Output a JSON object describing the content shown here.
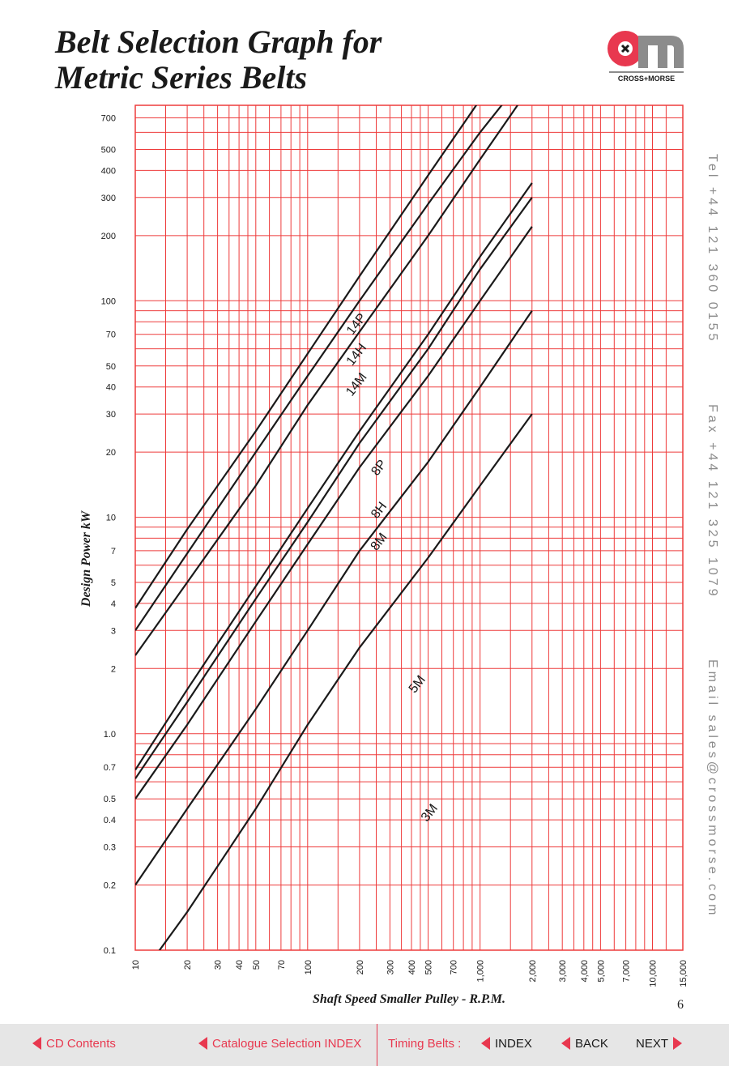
{
  "page": {
    "title_lines": [
      "Belt Selection Graph for",
      "Metric Series Belts"
    ],
    "logo_text": "CROSS+MORSE",
    "contact": {
      "tel": "Tel  +44 121 360 0155",
      "fax": "Fax  +44 121 325 1079",
      "email": "Email  sales@crossmorse.com"
    },
    "page_number": "6"
  },
  "colors": {
    "grid": "#ee3b3b",
    "curve": "#1a1a1a",
    "accent": "#e8384f",
    "footer_bg": "#e6e6e6"
  },
  "footer": {
    "cd_contents": "CD Contents",
    "catalogue_index": "Catalogue Selection INDEX",
    "section_label": "Timing Belts :",
    "index": "INDEX",
    "back": "BACK",
    "next": "NEXT"
  },
  "chart_data": {
    "type": "line",
    "title": "",
    "xlabel": "Shaft Speed Smaller Pulley - R.P.M.",
    "ylabel": "Design Power kW",
    "x_scale": "log",
    "y_scale": "log",
    "xlim": [
      10,
      15000
    ],
    "ylim": [
      0.1,
      800
    ],
    "grid": true,
    "x_ticks": [
      {
        "value": 10,
        "label": "10"
      },
      {
        "value": 20,
        "label": "20"
      },
      {
        "value": 30,
        "label": "30"
      },
      {
        "value": 40,
        "label": "40"
      },
      {
        "value": 50,
        "label": "50"
      },
      {
        "value": 70,
        "label": "70"
      },
      {
        "value": 100,
        "label": "100"
      },
      {
        "value": 200,
        "label": "200"
      },
      {
        "value": 300,
        "label": "300"
      },
      {
        "value": 400,
        "label": "400"
      },
      {
        "value": 500,
        "label": "500"
      },
      {
        "value": 700,
        "label": "700"
      },
      {
        "value": 1000,
        "label": "1,000"
      },
      {
        "value": 2000,
        "label": "2,000"
      },
      {
        "value": 3000,
        "label": "3,000"
      },
      {
        "value": 4000,
        "label": "4,000"
      },
      {
        "value": 5000,
        "label": "5,000"
      },
      {
        "value": 7000,
        "label": "7,000"
      },
      {
        "value": 10000,
        "label": "10,000"
      },
      {
        "value": 15000,
        "label": "15,000"
      }
    ],
    "y_ticks": [
      {
        "value": 0.1,
        "label": "0.1"
      },
      {
        "value": 0.2,
        "label": "0.2"
      },
      {
        "value": 0.3,
        "label": "0.3"
      },
      {
        "value": 0.4,
        "label": "0.4"
      },
      {
        "value": 0.5,
        "label": "0.5"
      },
      {
        "value": 0.7,
        "label": "0.7"
      },
      {
        "value": 1,
        "label": "1.0"
      },
      {
        "value": 2,
        "label": "2"
      },
      {
        "value": 3,
        "label": "3"
      },
      {
        "value": 4,
        "label": "4"
      },
      {
        "value": 5,
        "label": "5"
      },
      {
        "value": 7,
        "label": "7"
      },
      {
        "value": 10,
        "label": "10"
      },
      {
        "value": 20,
        "label": "20"
      },
      {
        "value": 30,
        "label": "30"
      },
      {
        "value": 40,
        "label": "40"
      },
      {
        "value": 50,
        "label": "50"
      },
      {
        "value": 70,
        "label": "70"
      },
      {
        "value": 100,
        "label": "100"
      },
      {
        "value": 200,
        "label": "200"
      },
      {
        "value": 300,
        "label": "300"
      },
      {
        "value": 400,
        "label": "400"
      },
      {
        "value": 500,
        "label": "500"
      },
      {
        "value": 700,
        "label": "700"
      }
    ],
    "x_gridlines": [
      10,
      15,
      20,
      25,
      30,
      35,
      40,
      45,
      50,
      60,
      70,
      80,
      90,
      100,
      150,
      200,
      250,
      300,
      350,
      400,
      450,
      500,
      600,
      700,
      800,
      900,
      1000,
      1500,
      2000,
      2500,
      3000,
      3500,
      4000,
      4500,
      5000,
      6000,
      7000,
      8000,
      9000,
      10000,
      12000,
      15000
    ],
    "y_gridlines": [
      0.1,
      0.2,
      0.3,
      0.4,
      0.5,
      0.6,
      0.7,
      0.8,
      0.9,
      1,
      2,
      3,
      4,
      5,
      6,
      7,
      8,
      9,
      10,
      20,
      30,
      40,
      50,
      60,
      70,
      80,
      90,
      100,
      200,
      300,
      400,
      500,
      600,
      700,
      800
    ],
    "series": [
      {
        "name": "14P",
        "label_at": [
          200,
          76
        ],
        "points": [
          [
            10,
            3.8
          ],
          [
            20,
            8.8
          ],
          [
            50,
            25
          ],
          [
            100,
            57
          ],
          [
            200,
            130
          ],
          [
            500,
            380
          ],
          [
            1000,
            850
          ],
          [
            2000,
            1000
          ]
        ]
      },
      {
        "name": "14H",
        "label_at": [
          200,
          55
        ],
        "points": [
          [
            10,
            3
          ],
          [
            20,
            6.8
          ],
          [
            50,
            20
          ],
          [
            100,
            45
          ],
          [
            200,
            100
          ],
          [
            500,
            280
          ],
          [
            1000,
            600
          ],
          [
            2000,
            1200
          ]
        ]
      },
      {
        "name": "14M",
        "label_at": [
          200,
          40
        ],
        "points": [
          [
            10,
            2.3
          ],
          [
            20,
            5
          ],
          [
            50,
            14
          ],
          [
            100,
            33
          ],
          [
            200,
            72
          ],
          [
            500,
            200
          ],
          [
            1000,
            450
          ],
          [
            2000,
            1000
          ]
        ]
      },
      {
        "name": "8P",
        "label_at": [
          270,
          16.5
        ],
        "points": [
          [
            10,
            0.68
          ],
          [
            20,
            1.6
          ],
          [
            50,
            4.8
          ],
          [
            100,
            11
          ],
          [
            200,
            25
          ],
          [
            500,
            70
          ],
          [
            1000,
            160
          ],
          [
            2000,
            350
          ]
        ]
      },
      {
        "name": "8H",
        "label_at": [
          270,
          10.5
        ],
        "points": [
          [
            10,
            0.62
          ],
          [
            20,
            1.4
          ],
          [
            50,
            4.2
          ],
          [
            100,
            9.5
          ],
          [
            200,
            22
          ],
          [
            500,
            60
          ],
          [
            1000,
            140
          ],
          [
            2000,
            300
          ]
        ]
      },
      {
        "name": "8M",
        "label_at": [
          270,
          7.5
        ],
        "points": [
          [
            10,
            0.5
          ],
          [
            20,
            1.1
          ],
          [
            50,
            3.3
          ],
          [
            100,
            7.5
          ],
          [
            200,
            17
          ],
          [
            500,
            45
          ],
          [
            1000,
            100
          ],
          [
            2000,
            220
          ]
        ]
      },
      {
        "name": "5M",
        "label_at": [
          450,
          1.65
        ],
        "points": [
          [
            10,
            0.2
          ],
          [
            20,
            0.45
          ],
          [
            50,
            1.3
          ],
          [
            100,
            3
          ],
          [
            200,
            7
          ],
          [
            500,
            18
          ],
          [
            1000,
            40
          ],
          [
            2000,
            90
          ]
        ]
      },
      {
        "name": "3M",
        "label_at": [
          530,
          0.42
        ],
        "points": [
          [
            10,
            0.07
          ],
          [
            20,
            0.15
          ],
          [
            50,
            0.45
          ],
          [
            100,
            1.1
          ],
          [
            200,
            2.5
          ],
          [
            500,
            6.5
          ],
          [
            1000,
            14
          ],
          [
            2000,
            30
          ]
        ]
      }
    ]
  }
}
